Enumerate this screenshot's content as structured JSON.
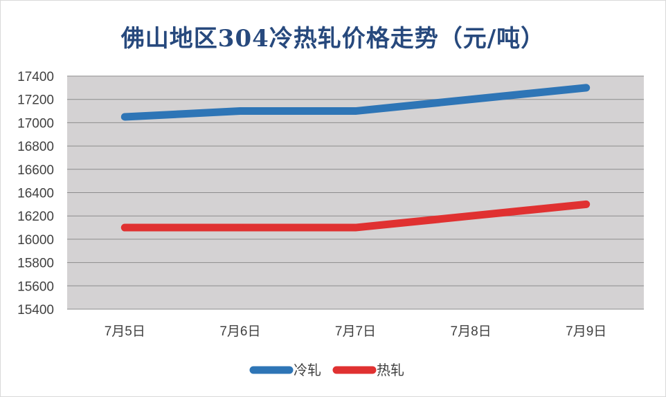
{
  "chart_data": {
    "type": "line",
    "title": "佛山地区304冷热轧价格走势（元/吨）",
    "categories": [
      "7月5日",
      "7月6日",
      "7月7日",
      "7月8日",
      "7月9日"
    ],
    "series": [
      {
        "name": "冷轧",
        "values": [
          17050,
          17100,
          17100,
          17200,
          17300
        ],
        "color": "#2e75b6"
      },
      {
        "name": "热轧",
        "values": [
          16100,
          16100,
          16100,
          16200,
          16300
        ],
        "color": "#e03131"
      }
    ],
    "ylim": [
      15400,
      17400
    ],
    "yticks": [
      15400,
      15600,
      15800,
      16000,
      16200,
      16400,
      16600,
      16800,
      17000,
      17200,
      17400
    ],
    "grid": true,
    "legend_position": "bottom",
    "plot_background": "#d4d2d3",
    "title_color": "#27497d"
  }
}
